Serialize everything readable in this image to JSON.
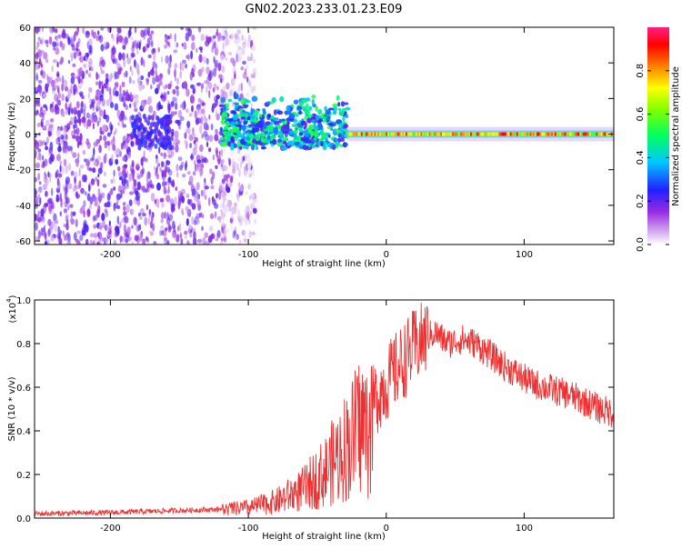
{
  "title": "GN02.2023.233.01.23.E09",
  "chart_data": [
    {
      "type": "heatmap",
      "xlabel": "Height of straight line (km)",
      "ylabel": "Frequency (Hz)",
      "xlim": [
        -255,
        165
      ],
      "ylim": [
        -62,
        60
      ],
      "xticks": [
        -200,
        -100,
        0,
        100
      ],
      "xtick_labels": [
        "-200",
        "-100",
        "0",
        "100"
      ],
      "yticks": [
        60,
        40,
        20,
        0,
        -20,
        -40,
        -60
      ],
      "ytick_labels": [
        "60",
        "40",
        "20",
        "0",
        "-20",
        "-40",
        "-60"
      ],
      "colorbar": {
        "label": "Normalized spectral amplitude",
        "range": [
          0,
          1
        ],
        "ticks": [
          0,
          0.2,
          0.4,
          0.6,
          0.8
        ],
        "tick_labels": [
          "0.0",
          "0.2",
          "0.4",
          "0.6",
          "0.8"
        ],
        "colormap": [
          "#ffffff",
          "#9a2be2",
          "#2020ff",
          "#00c8ff",
          "#00ff60",
          "#ffff00",
          "#ff8000",
          "#ff0000",
          "#ff2080"
        ]
      },
      "features": {
        "noise_region_x": [
          -255,
          -115
        ],
        "noise_freq_range": [
          -62,
          60
        ],
        "burst_region_x": [
          -120,
          -28
        ],
        "burst_freq_range": [
          -8,
          22
        ],
        "carrier_start_x": -28,
        "carrier_freq": 0,
        "carrier_max_amplitude": 0.95
      }
    },
    {
      "type": "line",
      "xlabel": "Height of straight line (km)",
      "ylabel": "SNR (10 * v/v)",
      "y_multiplier": "(x10",
      "y_multiplier_exp": "4",
      "xlim": [
        -255,
        165
      ],
      "ylim": [
        0,
        1.0
      ],
      "xticks": [
        -200,
        -100,
        0,
        100
      ],
      "xtick_labels": [
        "-200",
        "-100",
        "0",
        "100"
      ],
      "yticks": [
        0,
        0.2,
        0.4,
        0.6,
        0.8,
        1.0
      ],
      "ytick_labels": [
        "0.0",
        "0.2",
        "0.4",
        "0.6",
        "0.8",
        "1.0"
      ],
      "color": "#f03030",
      "x": [
        -255,
        -200,
        -150,
        -120,
        -100,
        -80,
        -60,
        -45,
        -35,
        -25,
        -18,
        -13,
        -10,
        -5,
        0,
        10,
        20,
        27,
        35,
        45,
        55,
        65,
        75,
        85,
        95,
        105,
        115,
        125,
        135,
        145,
        155,
        165
      ],
      "y": [
        0.02,
        0.025,
        0.035,
        0.04,
        0.05,
        0.08,
        0.14,
        0.22,
        0.3,
        0.38,
        0.46,
        0.4,
        0.52,
        0.58,
        0.62,
        0.7,
        0.78,
        0.82,
        0.85,
        0.8,
        0.82,
        0.8,
        0.75,
        0.7,
        0.66,
        0.62,
        0.6,
        0.58,
        0.56,
        0.53,
        0.5,
        0.48
      ]
    }
  ]
}
